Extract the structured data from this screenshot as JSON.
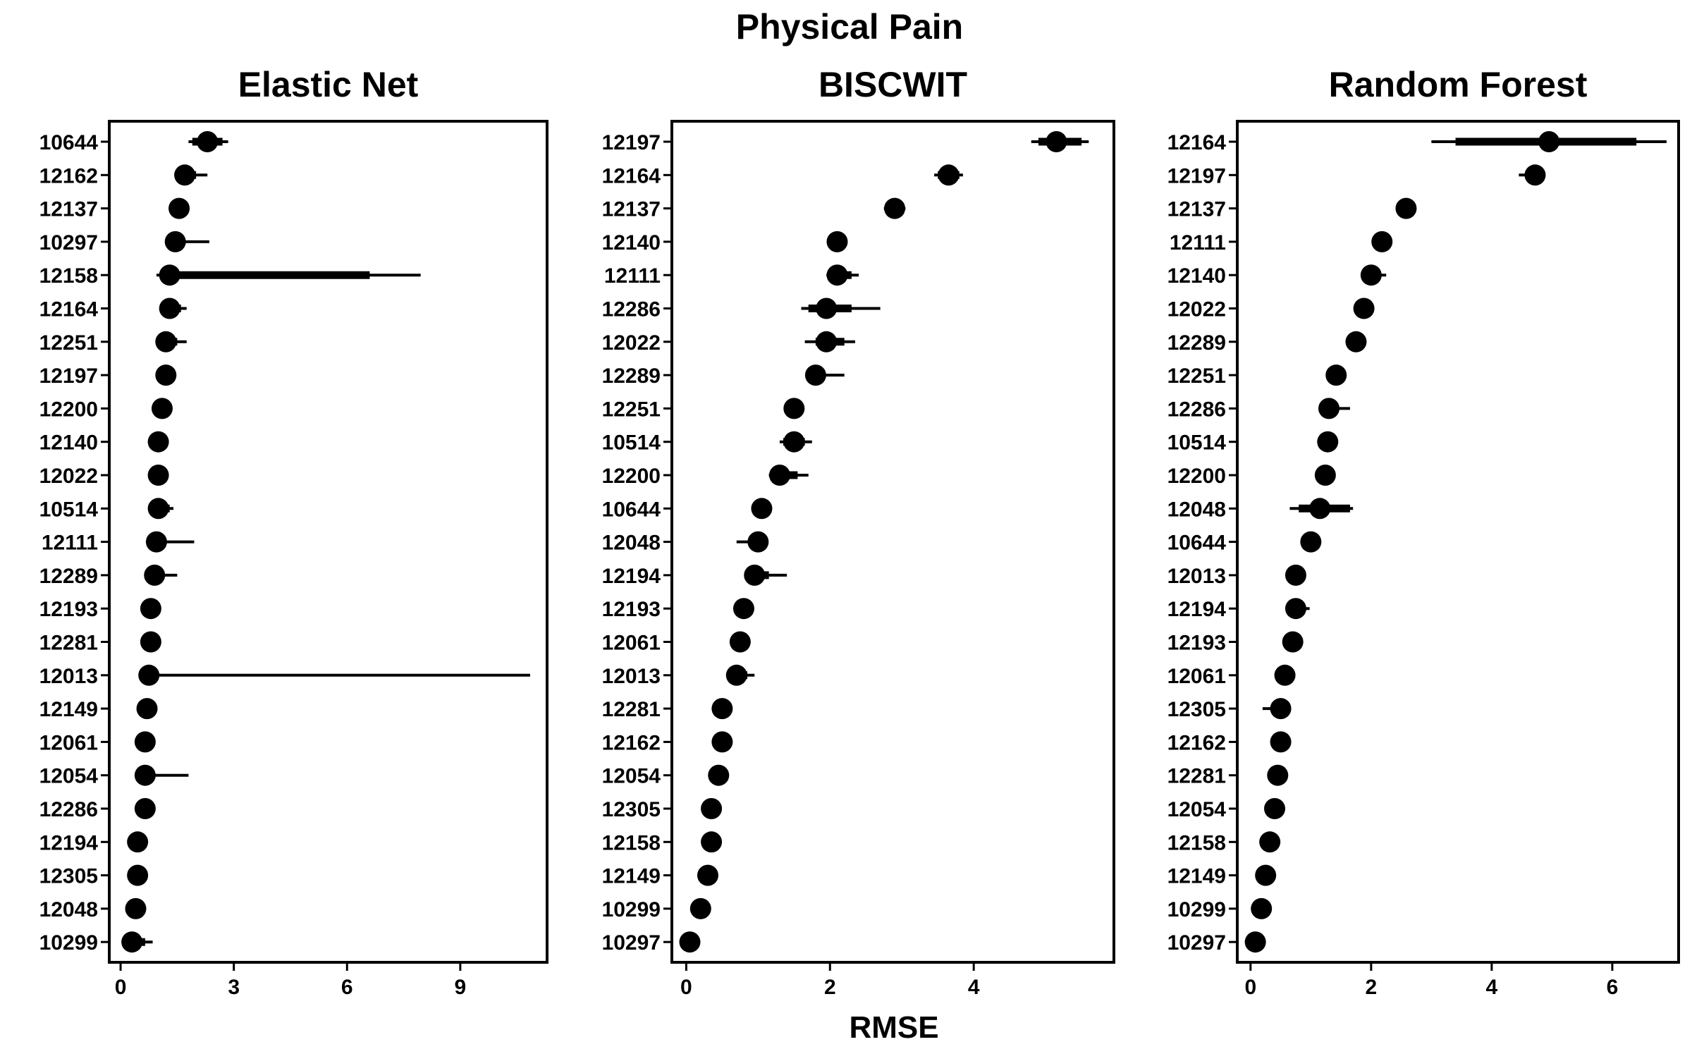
{
  "figure": {
    "title": "Physical Pain",
    "xlabel": "RMSE"
  },
  "chart_data": [
    {
      "type": "scatter",
      "title": "Elastic Net",
      "xlabel": "RMSE",
      "ylabel": "",
      "xlim": [
        -0.3,
        11.3
      ],
      "xticks": [
        0,
        3,
        6,
        9
      ],
      "grid": false,
      "categories": [
        "10644",
        "12162",
        "12137",
        "10297",
        "12158",
        "12164",
        "12251",
        "12197",
        "12200",
        "12140",
        "12022",
        "10514",
        "12111",
        "12289",
        "12193",
        "12281",
        "12013",
        "12149",
        "12061",
        "12054",
        "12286",
        "12194",
        "12305",
        "12048",
        "10299"
      ],
      "values": [
        2.3,
        1.7,
        1.55,
        1.45,
        1.3,
        1.3,
        1.2,
        1.2,
        1.1,
        1.0,
        1.0,
        1.0,
        0.95,
        0.9,
        0.8,
        0.8,
        0.75,
        0.7,
        0.65,
        0.65,
        0.65,
        0.45,
        0.45,
        0.4,
        0.3
      ],
      "inner_interval": [
        [
          1.9,
          2.7
        ],
        [
          1.5,
          2.0
        ],
        [
          1.45,
          1.65
        ],
        [
          1.35,
          1.6
        ],
        [
          1.1,
          6.6
        ],
        [
          1.2,
          1.6
        ],
        [
          1.1,
          1.5
        ],
        [
          1.1,
          1.3
        ],
        [
          1.0,
          1.2
        ],
        [
          0.9,
          1.1
        ],
        [
          0.9,
          1.1
        ],
        [
          0.95,
          1.3
        ],
        [
          0.85,
          1.1
        ],
        [
          0.8,
          1.0
        ],
        [
          0.75,
          0.85
        ],
        [
          0.75,
          0.85
        ],
        [
          0.7,
          0.8
        ],
        [
          0.65,
          0.75
        ],
        [
          0.6,
          0.7
        ],
        [
          0.6,
          0.7
        ],
        [
          0.6,
          0.7
        ],
        [
          0.4,
          0.5
        ],
        [
          0.4,
          0.5
        ],
        [
          0.35,
          0.45
        ],
        [
          0.25,
          0.65
        ]
      ],
      "outer_interval": [
        [
          1.8,
          2.85
        ],
        [
          1.5,
          2.3
        ],
        [
          1.45,
          1.65
        ],
        [
          1.35,
          2.35
        ],
        [
          0.95,
          7.95
        ],
        [
          1.15,
          1.75
        ],
        [
          1.1,
          1.75
        ],
        [
          1.1,
          1.3
        ],
        [
          1.0,
          1.35
        ],
        [
          0.9,
          1.1
        ],
        [
          0.9,
          1.1
        ],
        [
          0.9,
          1.4
        ],
        [
          0.85,
          1.95
        ],
        [
          0.8,
          1.5
        ],
        [
          0.75,
          0.85
        ],
        [
          0.75,
          0.85
        ],
        [
          0.7,
          10.85
        ],
        [
          0.65,
          0.75
        ],
        [
          0.6,
          0.7
        ],
        [
          0.55,
          1.8
        ],
        [
          0.6,
          0.7
        ],
        [
          0.4,
          0.5
        ],
        [
          0.4,
          0.5
        ],
        [
          0.35,
          0.45
        ],
        [
          0.2,
          0.85
        ]
      ]
    },
    {
      "type": "scatter",
      "title": "BISCWIT",
      "xlabel": "",
      "ylabel": "",
      "xlim": [
        -0.2,
        5.95
      ],
      "xticks": [
        0,
        2,
        4
      ],
      "grid": false,
      "categories": [
        "12197",
        "12164",
        "12137",
        "12140",
        "12111",
        "12286",
        "12022",
        "12289",
        "12251",
        "10514",
        "12200",
        "10644",
        "12048",
        "12194",
        "12193",
        "12061",
        "12013",
        "12281",
        "12162",
        "12054",
        "12305",
        "12158",
        "12149",
        "10299",
        "10297"
      ],
      "values": [
        5.15,
        3.65,
        2.9,
        2.1,
        2.1,
        1.95,
        1.95,
        1.8,
        1.5,
        1.5,
        1.3,
        1.05,
        1.0,
        0.95,
        0.8,
        0.75,
        0.7,
        0.5,
        0.5,
        0.45,
        0.35,
        0.35,
        0.3,
        0.2,
        0.05
      ],
      "inner_interval": [
        [
          4.9,
          5.5
        ],
        [
          3.5,
          3.8
        ],
        [
          2.8,
          3.0
        ],
        [
          2.05,
          2.15
        ],
        [
          2.0,
          2.3
        ],
        [
          1.7,
          2.3
        ],
        [
          1.8,
          2.2
        ],
        [
          1.75,
          1.85
        ],
        [
          1.45,
          1.55
        ],
        [
          1.35,
          1.65
        ],
        [
          1.2,
          1.55
        ],
        [
          1.0,
          1.1
        ],
        [
          0.95,
          1.05
        ],
        [
          0.9,
          1.15
        ],
        [
          0.75,
          0.85
        ],
        [
          0.7,
          0.8
        ],
        [
          0.65,
          0.85
        ],
        [
          0.45,
          0.55
        ],
        [
          0.45,
          0.55
        ],
        [
          0.4,
          0.5
        ],
        [
          0.3,
          0.4
        ],
        [
          0.3,
          0.4
        ],
        [
          0.25,
          0.35
        ],
        [
          0.15,
          0.25
        ],
        [
          0.0,
          0.1
        ]
      ],
      "outer_interval": [
        [
          4.8,
          5.6
        ],
        [
          3.45,
          3.85
        ],
        [
          2.75,
          3.05
        ],
        [
          2.05,
          2.15
        ],
        [
          1.95,
          2.4
        ],
        [
          1.6,
          2.7
        ],
        [
          1.65,
          2.35
        ],
        [
          1.7,
          2.2
        ],
        [
          1.45,
          1.55
        ],
        [
          1.3,
          1.75
        ],
        [
          1.15,
          1.7
        ],
        [
          1.0,
          1.1
        ],
        [
          0.7,
          1.05
        ],
        [
          0.85,
          1.4
        ],
        [
          0.75,
          0.85
        ],
        [
          0.7,
          0.8
        ],
        [
          0.6,
          0.95
        ],
        [
          0.45,
          0.55
        ],
        [
          0.45,
          0.55
        ],
        [
          0.4,
          0.5
        ],
        [
          0.3,
          0.4
        ],
        [
          0.3,
          0.4
        ],
        [
          0.25,
          0.35
        ],
        [
          0.15,
          0.25
        ],
        [
          0.0,
          0.1
        ]
      ]
    },
    {
      "type": "scatter",
      "title": "Random Forest",
      "xlabel": "",
      "ylabel": "",
      "xlim": [
        -0.22,
        7.1
      ],
      "xticks": [
        0,
        2,
        4,
        6
      ],
      "grid": false,
      "categories": [
        "12164",
        "12197",
        "12137",
        "12111",
        "12140",
        "12022",
        "12289",
        "12251",
        "12286",
        "10514",
        "12200",
        "12048",
        "10644",
        "12013",
        "12194",
        "12193",
        "12061",
        "12305",
        "12162",
        "12281",
        "12054",
        "12158",
        "12149",
        "10299",
        "10297"
      ],
      "values": [
        4.95,
        4.72,
        2.58,
        2.18,
        2.0,
        1.88,
        1.75,
        1.42,
        1.3,
        1.28,
        1.24,
        1.15,
        1.0,
        0.75,
        0.75,
        0.7,
        0.57,
        0.5,
        0.5,
        0.45,
        0.4,
        0.32,
        0.25,
        0.18,
        0.08
      ],
      "inner_interval": [
        [
          3.4,
          6.4
        ],
        [
          4.6,
          4.8
        ],
        [
          2.5,
          2.65
        ],
        [
          2.1,
          2.25
        ],
        [
          1.9,
          2.15
        ],
        [
          1.8,
          1.95
        ],
        [
          1.7,
          1.8
        ],
        [
          1.35,
          1.5
        ],
        [
          1.25,
          1.45
        ],
        [
          1.2,
          1.35
        ],
        [
          1.15,
          1.3
        ],
        [
          0.8,
          1.65
        ],
        [
          0.95,
          1.05
        ],
        [
          0.7,
          0.8
        ],
        [
          0.7,
          0.9
        ],
        [
          0.65,
          0.75
        ],
        [
          0.5,
          0.6
        ],
        [
          0.4,
          0.55
        ],
        [
          0.45,
          0.55
        ],
        [
          0.4,
          0.5
        ],
        [
          0.35,
          0.45
        ],
        [
          0.25,
          0.38
        ],
        [
          0.2,
          0.3
        ],
        [
          0.12,
          0.24
        ],
        [
          0.04,
          0.12
        ]
      ],
      "outer_interval": [
        [
          3.0,
          6.9
        ],
        [
          4.45,
          4.85
        ],
        [
          2.5,
          2.65
        ],
        [
          2.1,
          2.25
        ],
        [
          1.9,
          2.25
        ],
        [
          1.8,
          1.95
        ],
        [
          1.7,
          1.8
        ],
        [
          1.35,
          1.5
        ],
        [
          1.25,
          1.65
        ],
        [
          1.2,
          1.35
        ],
        [
          1.15,
          1.3
        ],
        [
          0.65,
          1.7
        ],
        [
          0.95,
          1.05
        ],
        [
          0.7,
          0.8
        ],
        [
          0.7,
          0.98
        ],
        [
          0.65,
          0.75
        ],
        [
          0.5,
          0.6
        ],
        [
          0.2,
          0.55
        ],
        [
          0.45,
          0.55
        ],
        [
          0.4,
          0.5
        ],
        [
          0.35,
          0.45
        ],
        [
          0.25,
          0.38
        ],
        [
          0.2,
          0.3
        ],
        [
          0.12,
          0.24
        ],
        [
          0.04,
          0.12
        ]
      ]
    }
  ]
}
